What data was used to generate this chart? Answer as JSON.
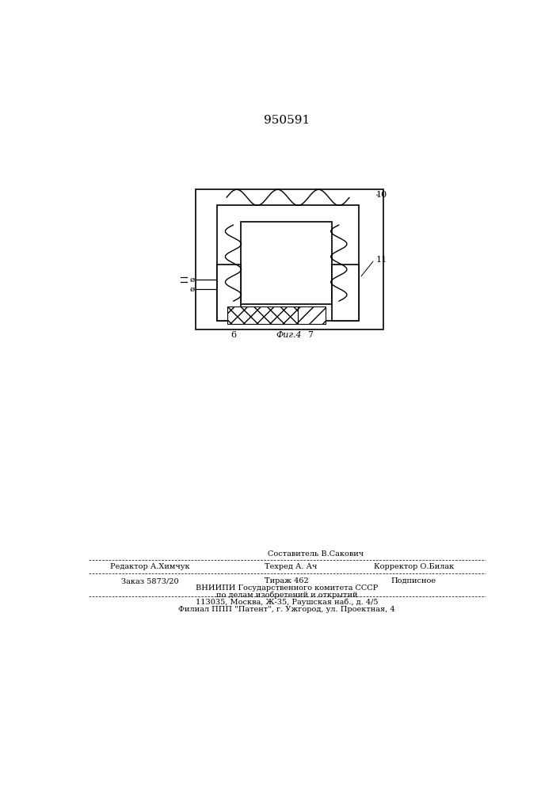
{
  "title": "950591",
  "bg_color": "#ffffff",
  "fig_label": "Фиг.4",
  "label_6": "6",
  "label_7": "7",
  "label_10": "10",
  "label_11": "11",
  "footer_line0": "Составитель В.Сакович",
  "footer_line1a": "Редактор А.Химчук",
  "footer_line1b": "Техред А. Ач",
  "footer_line1c": "Корректор О.Билак",
  "footer_line2a": "Заказ 5873/20",
  "footer_line2b": "Тираж 462",
  "footer_line2c": "Подписное",
  "footer_line3": "ВНИИПИ Государственного комитета СССР",
  "footer_line4": "по делам изобретений и открытий",
  "footer_line5": "113035, Москва, Ж-35, Раушская наб., д. 4/5",
  "footer_line6": "Филиал ППП \"Патент\", г. Ужгород, ул. Проектная, 4"
}
